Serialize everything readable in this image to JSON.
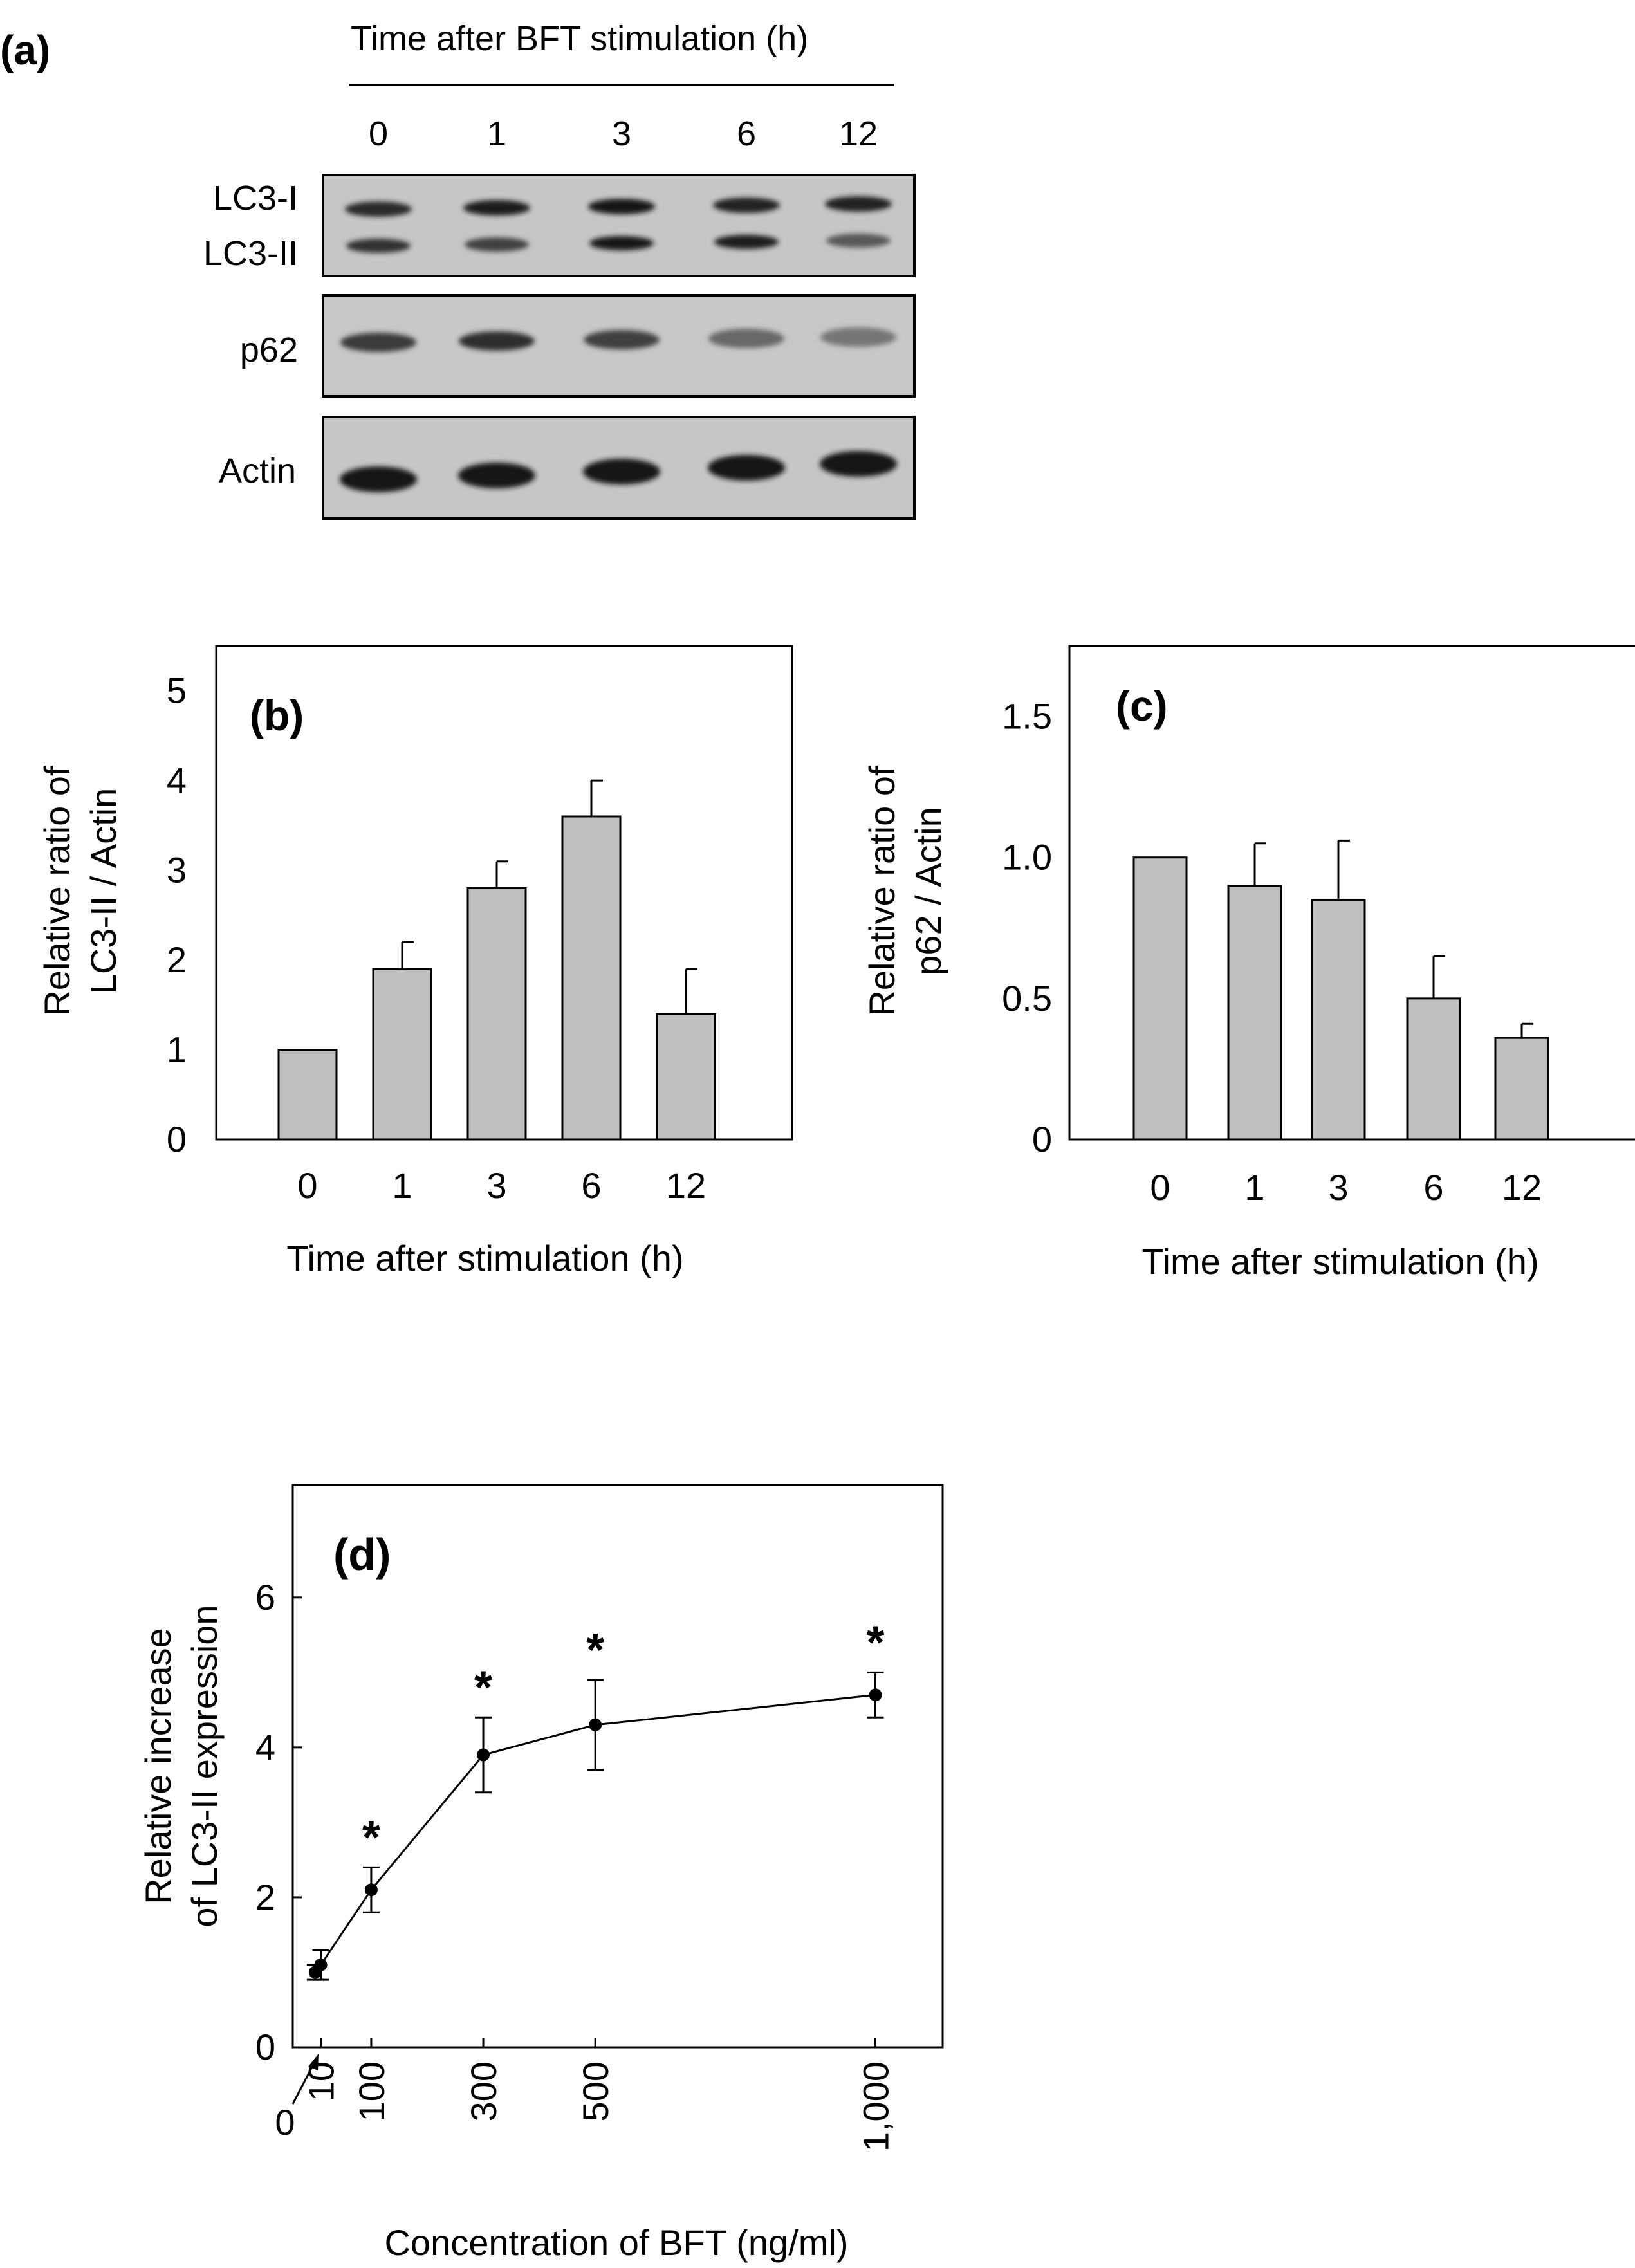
{
  "panel_a": {
    "label": "(a)",
    "header": "Time after BFT stimulation (h)",
    "timepoints": [
      "0",
      "1",
      "3",
      "6",
      "12"
    ],
    "blots": [
      {
        "name": "LC3",
        "labels": [
          "LC3-I",
          "LC3-II"
        ],
        "bands": [
          {
            "name": "LC3-I",
            "intensity": [
              0.85,
              0.95,
              0.97,
              0.92,
              0.9
            ]
          },
          {
            "name": "LC3-II",
            "intensity": [
              0.8,
              0.7,
              0.97,
              0.95,
              0.55
            ]
          }
        ]
      },
      {
        "name": "p62",
        "labels": [
          "p62"
        ],
        "bands": [
          {
            "name": "p62",
            "intensity": [
              0.75,
              0.82,
              0.7,
              0.45,
              0.35
            ]
          }
        ]
      },
      {
        "name": "Actin",
        "labels": [
          "Actin"
        ],
        "bands": [
          {
            "name": "Actin",
            "intensity": [
              1.0,
              1.0,
              1.0,
              1.0,
              1.0
            ]
          }
        ]
      }
    ]
  },
  "chart_data": [
    {
      "id": "b",
      "type": "bar",
      "label": "(b)",
      "categories": [
        "0",
        "1",
        "3",
        "6",
        "12"
      ],
      "values": [
        1.0,
        1.9,
        2.8,
        3.6,
        1.4
      ],
      "errors": [
        0,
        0.3,
        0.3,
        0.4,
        0.5
      ],
      "xlabel": "Time after stimulation (h)",
      "ylabel": [
        "Relative ratio of",
        "LC3-II / Actin"
      ],
      "ylim": [
        0,
        5.5
      ],
      "yticks": [
        0,
        1,
        2,
        3,
        4,
        5
      ],
      "ytick_labels": [
        "0",
        "1",
        "2",
        "3",
        "4",
        "5"
      ],
      "bar_color": "#c0c0c0"
    },
    {
      "id": "c",
      "type": "bar",
      "label": "(c)",
      "categories": [
        "0",
        "1",
        "3",
        "6",
        "12"
      ],
      "values": [
        1.0,
        0.9,
        0.85,
        0.5,
        0.36
      ],
      "errors": [
        0,
        0.15,
        0.21,
        0.15,
        0.05
      ],
      "xlabel": "Time after stimulation (h)",
      "ylabel": [
        "Relative ratio of",
        "p62 / Actin"
      ],
      "ylim": [
        0,
        1.75
      ],
      "yticks": [
        0,
        0.5,
        1.0,
        1.5
      ],
      "ytick_labels": [
        "0",
        "0.5",
        "1.0",
        "1.5"
      ],
      "bar_color": "#c0c0c0"
    },
    {
      "id": "d",
      "type": "line",
      "label": "(d)",
      "x": [
        0,
        10,
        100,
        300,
        500,
        1000
      ],
      "y": [
        1.0,
        1.1,
        2.1,
        3.9,
        4.3,
        4.7
      ],
      "errors": [
        0.1,
        0.2,
        0.3,
        0.5,
        0.6,
        0.3
      ],
      "significant": [
        false,
        false,
        true,
        true,
        true,
        true
      ],
      "marker": "*",
      "xticks": [
        10,
        100,
        300,
        500,
        1000
      ],
      "xtick_labels": [
        "10",
        "100",
        "300",
        "500",
        "1,000"
      ],
      "zero_label": "0",
      "xlim": [
        -40,
        1120
      ],
      "xlabel": "Concentration of BFT (ng/ml)",
      "ylabel": [
        "Relative increase",
        "of  LC3-II expression"
      ],
      "ylim": [
        0,
        7.5
      ],
      "yticks": [
        0,
        2,
        4,
        6
      ],
      "ytick_labels": [
        "0",
        "2",
        "4",
        "6"
      ]
    }
  ]
}
